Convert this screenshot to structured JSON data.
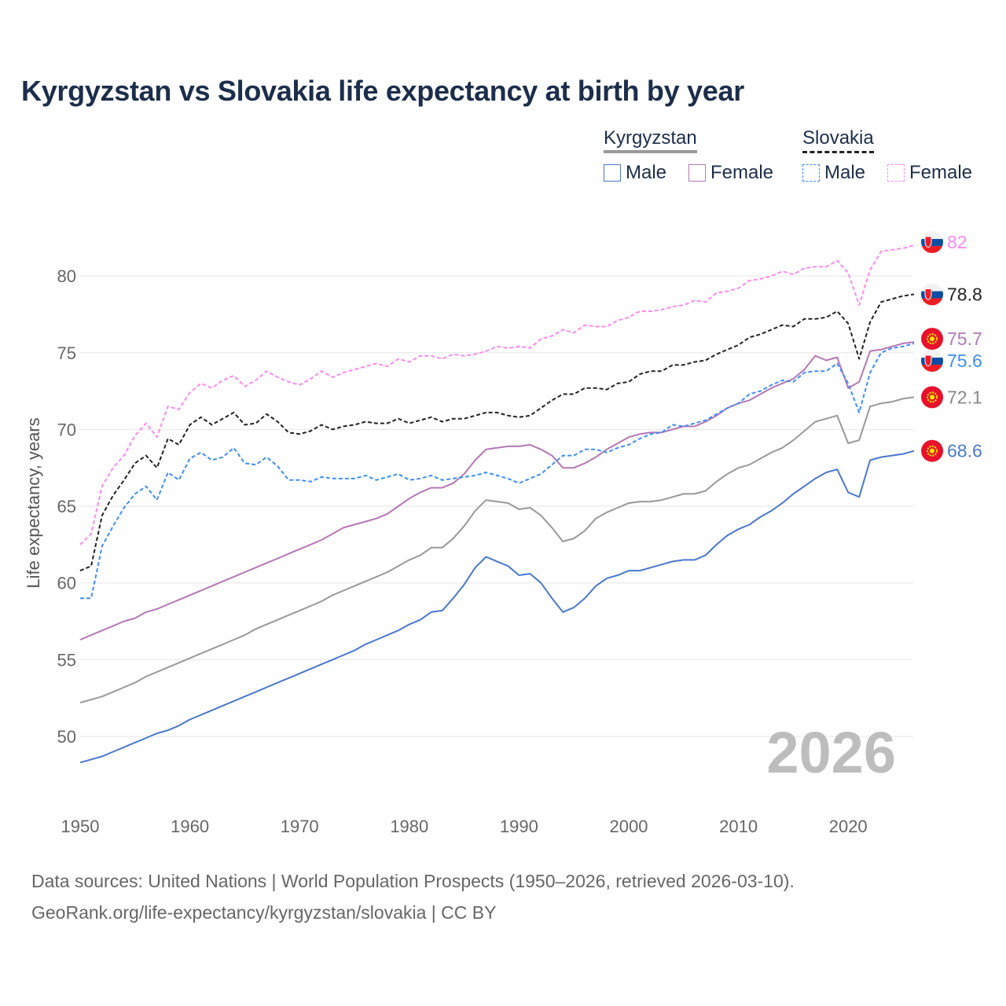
{
  "chart_data": {
    "type": "line",
    "title": "Kyrgyzstan vs Slovakia life expectancy at birth by year",
    "xlabel": "",
    "ylabel": "Life expectancy, years",
    "xlim": [
      1950,
      2026
    ],
    "ylim": [
      47,
      84
    ],
    "x_ticks": [
      1950,
      1960,
      1970,
      1980,
      1990,
      2000,
      2010,
      2020
    ],
    "y_ticks": [
      50,
      55,
      60,
      65,
      70,
      75,
      80
    ],
    "grid": true,
    "year_watermark": "2026",
    "legend": {
      "groups": [
        {
          "country": "Kyrgyzstan",
          "items": [
            "Male",
            "Female"
          ]
        },
        {
          "country": "Slovakia",
          "items": [
            "Male",
            "Female"
          ]
        }
      ],
      "placement": "top-right"
    },
    "x_start": 1950,
    "series": [
      {
        "name": "Kyrgyzstan Male",
        "country": "Kyrgyzstan",
        "sex": "Male",
        "color": "#4a78cc",
        "dashed": false,
        "end_label": "68.6",
        "values": [
          48.3,
          48.5,
          48.7,
          49.0,
          49.3,
          49.6,
          49.9,
          50.2,
          50.4,
          50.7,
          51.1,
          51.4,
          51.7,
          52.0,
          52.3,
          52.6,
          52.9,
          53.2,
          53.5,
          53.8,
          54.1,
          54.4,
          54.7,
          55.0,
          55.3,
          55.6,
          56.0,
          56.3,
          56.6,
          56.9,
          57.3,
          57.6,
          58.1,
          58.2,
          59.0,
          59.9,
          61.0,
          61.7,
          61.4,
          61.1,
          60.5,
          60.6,
          60.0,
          59.0,
          58.1,
          58.4,
          59.0,
          59.8,
          60.3,
          60.5,
          60.8,
          60.8,
          61.0,
          61.2,
          61.4,
          61.5,
          61.5,
          61.8,
          62.5,
          63.1,
          63.5,
          63.8,
          64.3,
          64.7,
          65.2,
          65.8,
          66.3,
          66.8,
          67.2,
          67.4,
          65.9,
          65.6,
          68.0,
          68.2,
          68.3,
          68.4,
          68.6
        ]
      },
      {
        "name": "Kyrgyzstan",
        "country": "Kyrgyzstan",
        "sex": "Both",
        "color": "#999999",
        "dashed": false,
        "end_label": "72.1",
        "values": [
          52.2,
          52.4,
          52.6,
          52.9,
          53.2,
          53.5,
          53.9,
          54.2,
          54.5,
          54.8,
          55.1,
          55.4,
          55.7,
          56.0,
          56.3,
          56.6,
          57.0,
          57.3,
          57.6,
          57.9,
          58.2,
          58.5,
          58.8,
          59.2,
          59.5,
          59.8,
          60.1,
          60.4,
          60.7,
          61.1,
          61.5,
          61.8,
          62.3,
          62.3,
          62.9,
          63.7,
          64.7,
          65.4,
          65.3,
          65.2,
          64.8,
          64.9,
          64.4,
          63.6,
          62.7,
          62.9,
          63.4,
          64.2,
          64.6,
          64.9,
          65.2,
          65.3,
          65.3,
          65.4,
          65.6,
          65.8,
          65.8,
          66.0,
          66.6,
          67.1,
          67.5,
          67.7,
          68.1,
          68.5,
          68.8,
          69.3,
          69.9,
          70.5,
          70.7,
          70.9,
          69.1,
          69.3,
          71.5,
          71.7,
          71.8,
          72.0,
          72.1
        ]
      },
      {
        "name": "Kyrgyzstan Female",
        "country": "Kyrgyzstan",
        "sex": "Female",
        "color": "#b478b4",
        "dashed": false,
        "end_label": "75.7",
        "values": [
          56.3,
          56.6,
          56.9,
          57.2,
          57.5,
          57.7,
          58.1,
          58.3,
          58.6,
          58.9,
          59.2,
          59.5,
          59.8,
          60.1,
          60.4,
          60.7,
          61.0,
          61.3,
          61.6,
          61.9,
          62.2,
          62.5,
          62.8,
          63.2,
          63.6,
          63.8,
          64.0,
          64.2,
          64.5,
          65.0,
          65.5,
          65.9,
          66.2,
          66.2,
          66.5,
          67.1,
          68.0,
          68.7,
          68.8,
          68.9,
          68.9,
          69.0,
          68.7,
          68.3,
          67.5,
          67.5,
          67.8,
          68.2,
          68.7,
          69.1,
          69.5,
          69.7,
          69.8,
          69.8,
          70.0,
          70.2,
          70.2,
          70.5,
          70.9,
          71.4,
          71.7,
          71.9,
          72.3,
          72.7,
          73.0,
          73.3,
          73.9,
          74.8,
          74.5,
          74.7,
          72.7,
          73.1,
          75.1,
          75.2,
          75.4,
          75.6,
          75.7
        ]
      },
      {
        "name": "Slovakia Male",
        "country": "Slovakia",
        "sex": "Male",
        "color": "#3f8ef7",
        "dashed": true,
        "end_label": "75.6",
        "values": [
          59.0,
          59.0,
          62.4,
          63.7,
          64.9,
          65.8,
          66.3,
          65.4,
          67.2,
          66.7,
          68.1,
          68.5,
          68.0,
          68.2,
          68.8,
          67.8,
          67.7,
          68.2,
          67.6,
          66.7,
          66.7,
          66.6,
          66.9,
          66.8,
          66.8,
          66.8,
          67.0,
          66.7,
          66.9,
          67.1,
          66.7,
          66.8,
          67.0,
          66.7,
          66.8,
          66.9,
          67.0,
          67.2,
          67.0,
          66.8,
          66.5,
          66.8,
          67.1,
          67.7,
          68.3,
          68.3,
          68.7,
          68.7,
          68.5,
          68.8,
          69.0,
          69.4,
          69.7,
          69.8,
          70.3,
          70.2,
          70.4,
          70.6,
          71.0,
          71.4,
          71.7,
          72.3,
          72.5,
          72.9,
          73.2,
          73.1,
          73.7,
          73.8,
          73.8,
          74.3,
          73.0,
          71.1,
          73.7,
          75.0,
          75.3,
          75.4,
          75.6
        ]
      },
      {
        "name": "Slovakia",
        "country": "Slovakia",
        "sex": "Both",
        "color": "#222222",
        "dashed": true,
        "end_label": "78.8",
        "values": [
          60.8,
          61.1,
          64.4,
          65.7,
          66.7,
          67.8,
          68.3,
          67.5,
          69.4,
          69.0,
          70.3,
          70.8,
          70.3,
          70.7,
          71.1,
          70.3,
          70.4,
          71.0,
          70.5,
          69.8,
          69.7,
          69.9,
          70.3,
          70.0,
          70.2,
          70.3,
          70.5,
          70.4,
          70.4,
          70.7,
          70.4,
          70.6,
          70.8,
          70.5,
          70.7,
          70.7,
          70.9,
          71.1,
          71.1,
          70.9,
          70.8,
          70.9,
          71.4,
          71.9,
          72.3,
          72.3,
          72.7,
          72.7,
          72.6,
          73.0,
          73.1,
          73.6,
          73.8,
          73.8,
          74.2,
          74.2,
          74.4,
          74.5,
          74.9,
          75.2,
          75.5,
          76.0,
          76.2,
          76.5,
          76.8,
          76.7,
          77.2,
          77.2,
          77.3,
          77.7,
          76.9,
          74.6,
          77.0,
          78.3,
          78.5,
          78.7,
          78.8
        ]
      },
      {
        "name": "Slovakia Female",
        "country": "Slovakia",
        "sex": "Female",
        "color": "#ff88ee",
        "dashed": true,
        "end_label": "82",
        "values": [
          62.5,
          63.2,
          66.3,
          67.5,
          68.3,
          69.6,
          70.4,
          69.5,
          71.5,
          71.3,
          72.4,
          73.0,
          72.7,
          73.2,
          73.5,
          72.8,
          73.2,
          73.8,
          73.4,
          73.1,
          72.9,
          73.3,
          73.8,
          73.4,
          73.7,
          73.9,
          74.1,
          74.3,
          74.1,
          74.6,
          74.4,
          74.8,
          74.8,
          74.6,
          74.9,
          74.8,
          74.9,
          75.1,
          75.4,
          75.3,
          75.4,
          75.3,
          75.9,
          76.1,
          76.5,
          76.3,
          76.8,
          76.7,
          76.7,
          77.1,
          77.3,
          77.7,
          77.7,
          77.8,
          78.0,
          78.1,
          78.4,
          78.3,
          78.9,
          79.0,
          79.2,
          79.7,
          79.8,
          80.0,
          80.3,
          80.1,
          80.5,
          80.6,
          80.6,
          81.0,
          80.2,
          78.1,
          80.4,
          81.6,
          81.7,
          81.8,
          82.0
        ]
      }
    ]
  },
  "source": {
    "line1": "Data sources: United Nations | World Population Prospects (1950–2026, retrieved 2026-03-10).",
    "line2": "GeoRank.org/life-expectancy/kyrgyzstan/slovakia | CC BY"
  }
}
